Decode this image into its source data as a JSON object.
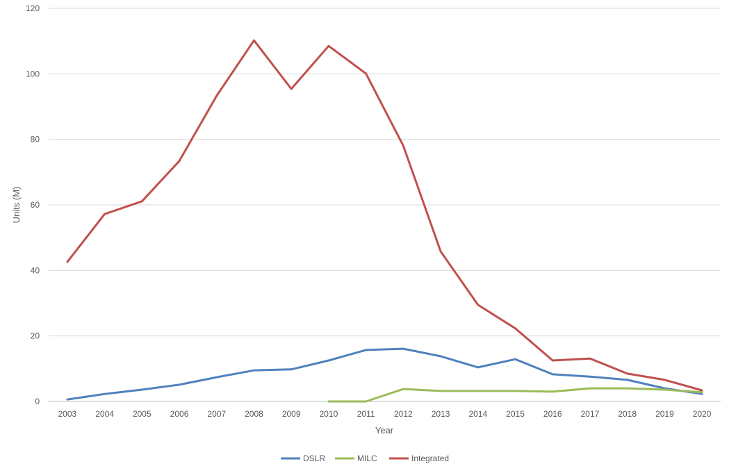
{
  "chart_data": {
    "type": "line",
    "title": "",
    "xlabel": "Year",
    "ylabel": "Units (M)",
    "ylim": [
      0,
      120
    ],
    "yticks": [
      0,
      20,
      40,
      60,
      80,
      100,
      120
    ],
    "grid": true,
    "legend_position": "bottom",
    "categories": [
      "2003",
      "2004",
      "2005",
      "2006",
      "2007",
      "2008",
      "2009",
      "2010",
      "2011",
      "2012",
      "2013",
      "2014",
      "2015",
      "2016",
      "2017",
      "2018",
      "2019",
      "2020"
    ],
    "series": [
      {
        "name": "DSLR",
        "color": "#4f81bd",
        "values": [
          0.6,
          2.3,
          3.6,
          5.1,
          7.4,
          9.5,
          9.8,
          12.5,
          15.7,
          16.1,
          13.8,
          10.4,
          12.9,
          8.3,
          7.6,
          6.6,
          4.0,
          2.3
        ]
      },
      {
        "name": "MILC",
        "color": "#9bbb59",
        "values": [
          null,
          null,
          null,
          null,
          null,
          null,
          null,
          0,
          0,
          3.8,
          3.2,
          3.2,
          3.2,
          3.0,
          4.0,
          4.0,
          3.6,
          2.8
        ]
      },
      {
        "name": "Integrated",
        "color": "#c0504d",
        "values": [
          42.6,
          57.2,
          61.1,
          73.4,
          93.3,
          110.2,
          95.4,
          108.5,
          100.1,
          78.0,
          45.8,
          29.5,
          22.3,
          12.5,
          13.1,
          8.5,
          6.6,
          3.4
        ]
      }
    ]
  }
}
